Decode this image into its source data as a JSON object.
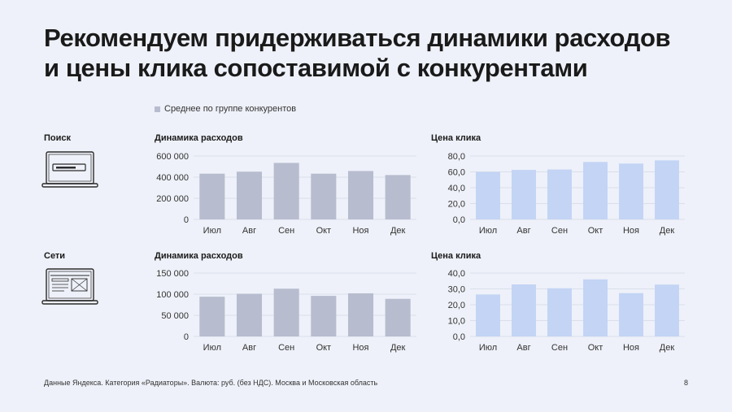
{
  "slide": {
    "title_line1": "Рекомендуем придерживаться динамики расходов",
    "title_line2": "и цены клика сопоставимой с конкурентами",
    "legend_label": "Среднее по группе конкурентов",
    "footer": "Данные Яндекса. Категория «Радиаторы». Валюта: руб. (без НДС). Москва и Московская область",
    "page_number": "8"
  },
  "sections": {
    "search": {
      "label": "Поиск",
      "icon": "laptop-search-icon"
    },
    "network": {
      "label": "Сети",
      "icon": "laptop-network-icon"
    }
  },
  "colors": {
    "spend_bar": "#b7bccf",
    "cpc_bar": "#c3d4f5",
    "grid": "#d3d8e6",
    "axis_text": "#333333"
  },
  "chart_data": [
    {
      "type": "bar",
      "section": "Поиск",
      "title": "Динамика расходов",
      "categories": [
        "Июл",
        "Авг",
        "Сен",
        "Окт",
        "Ноя",
        "Дек"
      ],
      "series": [
        {
          "name": "Среднее по группе конкурентов",
          "values": [
            433000,
            452000,
            535000,
            433000,
            458000,
            420000
          ]
        }
      ],
      "ylim": [
        0,
        600000
      ],
      "yticks": [
        0,
        200000,
        400000,
        600000
      ],
      "ytick_labels": [
        "0",
        "200 000",
        "400 000",
        "600 000"
      ],
      "grid": true
    },
    {
      "type": "bar",
      "section": "Поиск",
      "title": "Цена клика",
      "categories": [
        "Июл",
        "Авг",
        "Сен",
        "Окт",
        "Ноя",
        "Дек"
      ],
      "series": [
        {
          "name": "Среднее по группе конкурентов",
          "values": [
            60,
            62.5,
            63,
            72.5,
            70.5,
            74.5
          ]
        }
      ],
      "ylim": [
        0,
        80
      ],
      "yticks": [
        0,
        20,
        40,
        60,
        80
      ],
      "ytick_labels": [
        "0,0",
        "20,0",
        "40,0",
        "60,0",
        "80,0"
      ],
      "grid": true
    },
    {
      "type": "bar",
      "section": "Сети",
      "title": "Динамика расходов",
      "categories": [
        "Июл",
        "Авг",
        "Сен",
        "Окт",
        "Ноя",
        "Дек"
      ],
      "series": [
        {
          "name": "Среднее по группе конкурентов",
          "values": [
            94000,
            101000,
            113000,
            96000,
            102000,
            89000
          ]
        }
      ],
      "ylim": [
        0,
        150000
      ],
      "yticks": [
        0,
        50000,
        100000,
        150000
      ],
      "ytick_labels": [
        "0",
        "50 000",
        "100 000",
        "150 000"
      ],
      "grid": true
    },
    {
      "type": "bar",
      "section": "Сети",
      "title": "Цена клика",
      "categories": [
        "Июл",
        "Авг",
        "Сен",
        "Окт",
        "Ноя",
        "Дек"
      ],
      "series": [
        {
          "name": "Среднее по группе конкурентов",
          "values": [
            26.5,
            32.8,
            30.4,
            36,
            27.3,
            32.7
          ]
        }
      ],
      "ylim": [
        0,
        40
      ],
      "yticks": [
        0,
        10,
        20,
        30,
        40
      ],
      "ytick_labels": [
        "0,0",
        "10,0",
        "20,0",
        "30,0",
        "40,0"
      ],
      "grid": true
    }
  ]
}
